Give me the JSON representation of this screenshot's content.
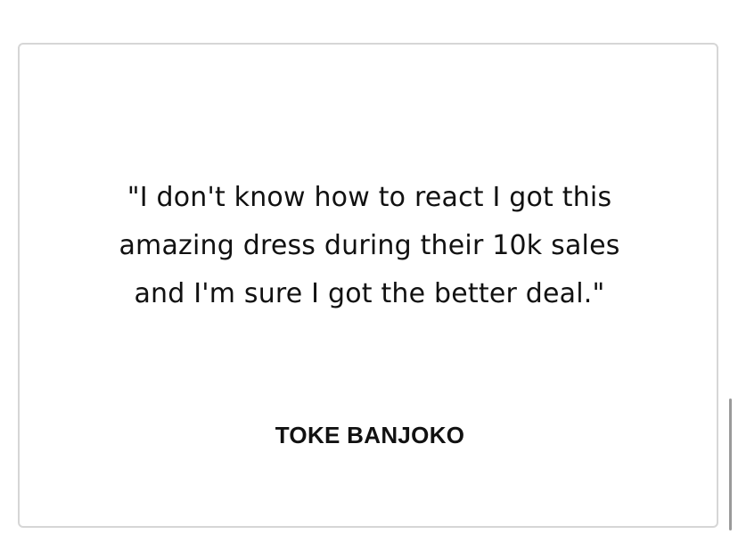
{
  "testimonial": {
    "quote": "\"I don't know how to react I got this amazing dress during their 10k sales and I'm sure I got the better deal.\"",
    "author": "TOKE BANJOKO"
  },
  "colors": {
    "card_border": "#d6d6d6",
    "text": "#111111",
    "scrollbar": "#9a9a9a"
  }
}
